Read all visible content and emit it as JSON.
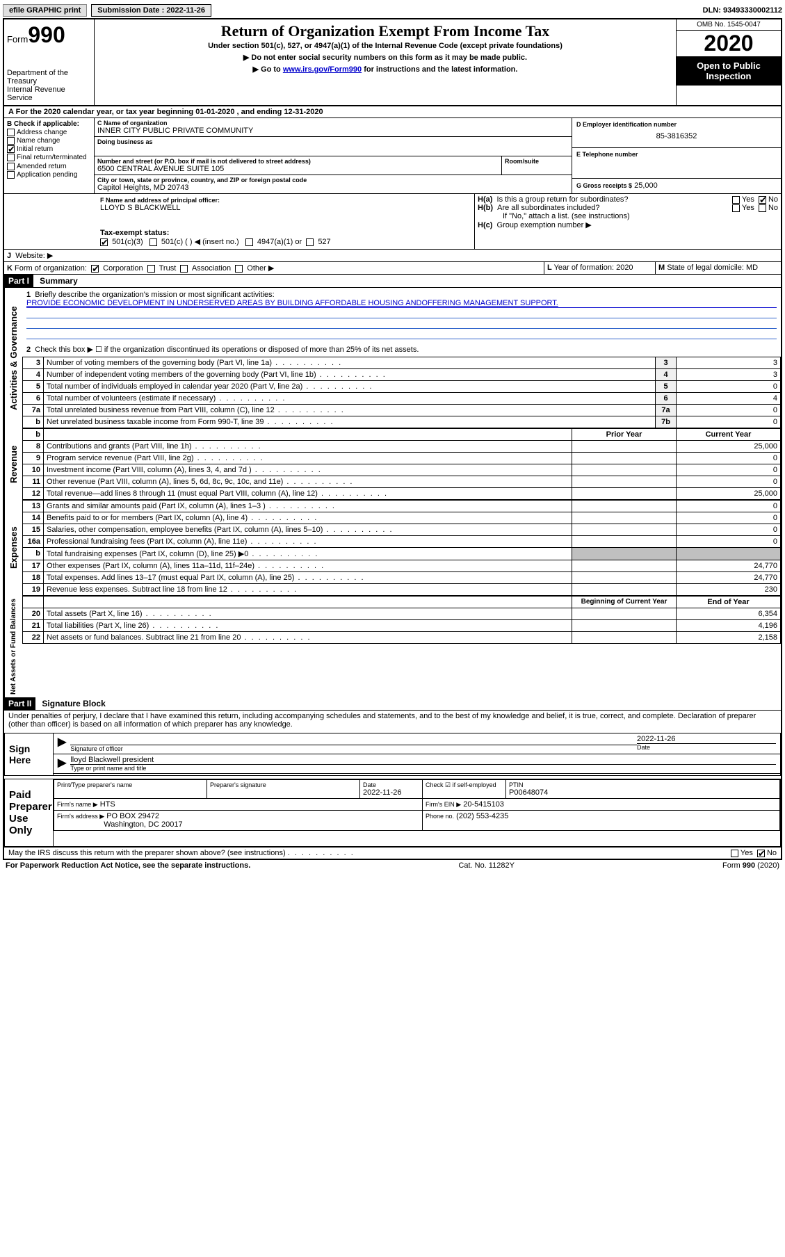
{
  "topbar": {
    "efile": "efile GRAPHIC print",
    "sub_label": "Submission Date : 2022-11-26",
    "dln": "DLN: 93493330002112"
  },
  "header": {
    "form_prefix": "Form",
    "form_num": "990",
    "dept": "Department of the Treasury\nInternal Revenue Service",
    "title": "Return of Organization Exempt From Income Tax",
    "sub": "Under section 501(c), 527, or 4947(a)(1) of the Internal Revenue Code (except private foundations)",
    "note1": "▶ Do not enter social security numbers on this form as it may be made public.",
    "note2_pre": "▶ Go to ",
    "note2_link": "www.irs.gov/Form990",
    "note2_post": " for instructions and the latest information.",
    "omb": "OMB No. 1545-0047",
    "year": "2020",
    "inspect": "Open to Public Inspection"
  },
  "line_a": "For the 2020 calendar year, or tax year beginning 01-01-2020    , and ending 12-31-2020",
  "box_b": {
    "label": "Check if applicable:",
    "items": [
      {
        "label": "Address change",
        "checked": false
      },
      {
        "label": "Name change",
        "checked": false
      },
      {
        "label": "Initial return",
        "checked": true
      },
      {
        "label": "Final return/terminated",
        "checked": false
      },
      {
        "label": "Amended return",
        "checked": false
      },
      {
        "label": "Application pending",
        "checked": false
      }
    ]
  },
  "box_c": {
    "name_label": "Name of organization",
    "name": "INNER CITY PUBLIC PRIVATE COMMUNITY",
    "dba_label": "Doing business as",
    "dba": "",
    "addr_label": "Number and street (or P.O. box if mail is not delivered to street address)",
    "room_label": "Room/suite",
    "addr": "6500 CENTRAL AVENUE SUITE 105",
    "city_label": "City or town, state or province, country, and ZIP or foreign postal code",
    "city": "Capitol Heights, MD  20743"
  },
  "box_d": {
    "label": "D Employer identification number",
    "value": "85-3816352"
  },
  "box_e": {
    "label": "E Telephone number",
    "value": ""
  },
  "box_g": {
    "label": "G Gross receipts $",
    "value": "25,000"
  },
  "box_f": {
    "label": "F  Name and address of principal officer:",
    "value": "LLOYD S BLACKWELL"
  },
  "box_h": {
    "a_label": "Is this a group return for subordinates?",
    "a_yes": false,
    "a_no": true,
    "b_label": "Are all subordinates included?",
    "b_note": "If \"No,\" attach a list. (see instructions)",
    "c_label": "Group exemption number ▶"
  },
  "tax_exempt": {
    "label": "Tax-exempt status:",
    "c3_checked": true,
    "opts": [
      "501(c)(3)",
      "501(c) (  ) ◀ (insert no.)",
      "4947(a)(1) or",
      "527"
    ]
  },
  "box_j": {
    "label": "Website: ▶",
    "value": ""
  },
  "box_k": {
    "label": "Form of organization:",
    "corp": true,
    "opts": [
      "Corporation",
      "Trust",
      "Association",
      "Other ▶"
    ]
  },
  "box_l": {
    "label": "Year of formation:",
    "value": "2020"
  },
  "box_m": {
    "label": "State of legal domicile:",
    "value": "MD"
  },
  "part1": {
    "hdr": "Part I",
    "title": "Summary",
    "l1_label": "Briefly describe the organization's mission or most significant activities:",
    "l1_text": "PROVIDE ECONOMIC DEVELOPMENT IN UNDERSERVED AREAS BY BUILDING AFFORDABLE HOUSING ANDOFFERING MANAGEMENT SUPPORT.",
    "l2": "Check this box ▶ ☐  if the organization discontinued its operations or disposed of more than 25% of its net assets.",
    "gov_tab": "Activities & Governance",
    "rev_tab": "Revenue",
    "exp_tab": "Expenses",
    "net_tab": "Net Assets or Fund Balances",
    "rows_gov": [
      {
        "n": "3",
        "t": "Number of voting members of the governing body (Part VI, line 1a)",
        "ln": "3",
        "v": "3"
      },
      {
        "n": "4",
        "t": "Number of independent voting members of the governing body (Part VI, line 1b)",
        "ln": "4",
        "v": "3"
      },
      {
        "n": "5",
        "t": "Total number of individuals employed in calendar year 2020 (Part V, line 2a)",
        "ln": "5",
        "v": "0"
      },
      {
        "n": "6",
        "t": "Total number of volunteers (estimate if necessary)",
        "ln": "6",
        "v": "4"
      },
      {
        "n": "7a",
        "t": "Total unrelated business revenue from Part VIII, column (C), line 12",
        "ln": "7a",
        "v": "0"
      },
      {
        "n": "b",
        "t": "Net unrelated business taxable income from Form 990-T, line 39",
        "ln": "7b",
        "v": "0"
      }
    ],
    "col_prior": "Prior Year",
    "col_current": "Current Year",
    "rows_rev": [
      {
        "n": "8",
        "t": "Contributions and grants (Part VIII, line 1h)",
        "p": "",
        "c": "25,000"
      },
      {
        "n": "9",
        "t": "Program service revenue (Part VIII, line 2g)",
        "p": "",
        "c": "0"
      },
      {
        "n": "10",
        "t": "Investment income (Part VIII, column (A), lines 3, 4, and 7d )",
        "p": "",
        "c": "0"
      },
      {
        "n": "11",
        "t": "Other revenue (Part VIII, column (A), lines 5, 6d, 8c, 9c, 10c, and 11e)",
        "p": "",
        "c": "0"
      },
      {
        "n": "12",
        "t": "Total revenue—add lines 8 through 11 (must equal Part VIII, column (A), line 12)",
        "p": "",
        "c": "25,000"
      }
    ],
    "rows_exp": [
      {
        "n": "13",
        "t": "Grants and similar amounts paid (Part IX, column (A), lines 1–3 )",
        "p": "",
        "c": "0"
      },
      {
        "n": "14",
        "t": "Benefits paid to or for members (Part IX, column (A), line 4)",
        "p": "",
        "c": "0"
      },
      {
        "n": "15",
        "t": "Salaries, other compensation, employee benefits (Part IX, column (A), lines 5–10)",
        "p": "",
        "c": "0"
      },
      {
        "n": "16a",
        "t": "Professional fundraising fees (Part IX, column (A), line 11e)",
        "p": "",
        "c": "0"
      },
      {
        "n": "b",
        "t": "Total fundraising expenses (Part IX, column (D), line 25) ▶0",
        "p": "shade",
        "c": "shade"
      },
      {
        "n": "17",
        "t": "Other expenses (Part IX, column (A), lines 11a–11d, 11f–24e)",
        "p": "",
        "c": "24,770"
      },
      {
        "n": "18",
        "t": "Total expenses. Add lines 13–17 (must equal Part IX, column (A), line 25)",
        "p": "",
        "c": "24,770"
      },
      {
        "n": "19",
        "t": "Revenue less expenses. Subtract line 18 from line 12",
        "p": "",
        "c": "230"
      }
    ],
    "col_begin": "Beginning of Current Year",
    "col_end": "End of Year",
    "rows_net": [
      {
        "n": "20",
        "t": "Total assets (Part X, line 16)",
        "p": "",
        "c": "6,354"
      },
      {
        "n": "21",
        "t": "Total liabilities (Part X, line 26)",
        "p": "",
        "c": "4,196"
      },
      {
        "n": "22",
        "t": "Net assets or fund balances. Subtract line 21 from line 20",
        "p": "",
        "c": "2,158"
      }
    ]
  },
  "part2": {
    "hdr": "Part II",
    "title": "Signature Block",
    "perjury": "Under penalties of perjury, I declare that I have examined this return, including accompanying schedules and statements, and to the best of my knowledge and belief, it is true, correct, and complete. Declaration of preparer (other than officer) is based on all information of which preparer has any knowledge."
  },
  "sign": {
    "label": "Sign Here",
    "sig_label": "Signature of officer",
    "date_label": "Date",
    "date": "2022-11-26",
    "name": "lloyd Blackwell  president",
    "name_label": "Type or print name and title"
  },
  "preparer": {
    "label": "Paid Preparer Use Only",
    "col_name": "Print/Type preparer's name",
    "col_sig": "Preparer's signature",
    "col_date": "Date",
    "date": "2022-11-26",
    "self_emp": "Check ☑ if self-employed",
    "ptin_label": "PTIN",
    "ptin": "P00648074",
    "firm_name_label": "Firm's name    ▶",
    "firm_name": "HTS",
    "firm_ein_label": "Firm's EIN ▶",
    "firm_ein": "20-5415103",
    "firm_addr_label": "Firm's address ▶",
    "firm_addr1": "PO BOX 29472",
    "firm_addr2": "Washington, DC  20017",
    "phone_label": "Phone no.",
    "phone": "(202) 553-4235"
  },
  "discuss": {
    "text": "May the IRS discuss this return with the preparer shown above? (see instructions)",
    "no": true
  },
  "footer": {
    "left": "For Paperwork Reduction Act Notice, see the separate instructions.",
    "mid": "Cat. No. 11282Y",
    "right_pre": "Form ",
    "right_bold": "990",
    "right_post": " (2020)"
  },
  "colors": {
    "link": "#0000cc",
    "black": "#000000",
    "shade": "#c0c0c0",
    "lightshade": "#f0f0f0"
  }
}
